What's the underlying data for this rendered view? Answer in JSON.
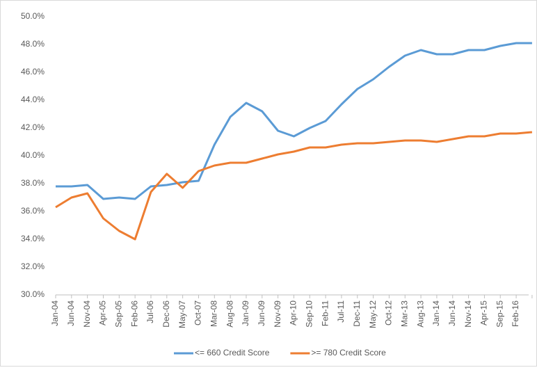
{
  "chart_data": {
    "type": "line",
    "categories": [
      "Jan-04",
      "Jun-04",
      "Nov-04",
      "Apr-05",
      "Sep-05",
      "Feb-06",
      "Jul-06",
      "Dec-06",
      "May-07",
      "Oct-07",
      "Mar-08",
      "Aug-08",
      "Jan-09",
      "Jun-09",
      "Nov-09",
      "Apr-10",
      "Sep-10",
      "Feb-11",
      "Jul-11",
      "Dec-11",
      "May-12",
      "Oct-12",
      "Mar-13",
      "Aug-13",
      "Jan-14",
      "Jun-14",
      "Nov-14",
      "Apr-15",
      "Sep-15",
      "Feb-16",
      null
    ],
    "series": [
      {
        "name": "<= 660 Credit Score",
        "color": "#5b9bd5",
        "values": [
          37.8,
          37.8,
          37.9,
          36.9,
          37.0,
          36.9,
          37.8,
          37.9,
          38.1,
          38.2,
          40.8,
          42.8,
          43.8,
          43.2,
          41.8,
          41.4,
          42.0,
          42.5,
          43.7,
          44.8,
          45.5,
          46.4,
          47.2,
          47.6,
          47.3,
          47.3,
          47.6,
          47.6,
          47.9,
          48.1,
          48.1
        ]
      },
      {
        "name": ">= 780 Credit Score",
        "color": "#ed7d31",
        "values": [
          36.3,
          37.0,
          37.3,
          35.5,
          34.6,
          34.0,
          37.4,
          38.7,
          37.7,
          38.9,
          39.3,
          39.5,
          39.5,
          39.8,
          40.1,
          40.3,
          40.6,
          40.6,
          40.8,
          40.9,
          40.9,
          41.0,
          41.1,
          41.1,
          41.0,
          41.2,
          41.4,
          41.4,
          41.6,
          41.6,
          41.7
        ]
      }
    ],
    "ylim": [
      30,
      50
    ],
    "yticks": [
      {
        "value": 30,
        "label": "30.0%"
      },
      {
        "value": 32,
        "label": "32.0%"
      },
      {
        "value": 34,
        "label": "34.0%"
      },
      {
        "value": 36,
        "label": "36.0%"
      },
      {
        "value": 38,
        "label": "38.0%"
      },
      {
        "value": 40,
        "label": "40.0%"
      },
      {
        "value": 42,
        "label": "42.0%"
      },
      {
        "value": 44,
        "label": "44.0%"
      },
      {
        "value": 46,
        "label": "46.0%"
      },
      {
        "value": 48,
        "label": "48.0%"
      },
      {
        "value": 50,
        "label": "50.0%"
      }
    ],
    "grid": false,
    "legend": "bottom"
  }
}
